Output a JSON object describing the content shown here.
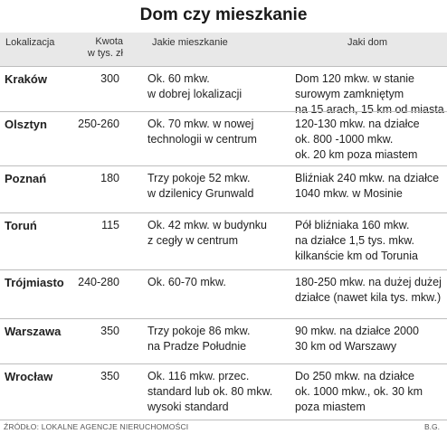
{
  "title": "Dom czy mieszkanie",
  "header": {
    "location": "Lokalizacja",
    "amount_l1": "Kwota",
    "amount_l2": "w tys. zł",
    "flat": "Jakie mieszkanie",
    "house": "Jaki dom"
  },
  "rows": [
    {
      "city": "Kraków",
      "price": "300",
      "flat": [
        "Ok. 60 mkw.",
        "w dobrej lokalizacji"
      ],
      "house": [
        "Dom 120 mkw. w stanie",
        "surowym zamkniętym",
        "na 15 arach, 15 km od miasta"
      ]
    },
    {
      "city": "Olsztyn",
      "price": "250-260",
      "flat": [
        "Ok. 70 mkw. w nowej",
        "technologii w centrum"
      ],
      "house": [
        "120-130 mkw. na działce",
        " ok. 800 -1000 mkw.",
        " ok. 20 km poza miastem"
      ]
    },
    {
      "city": "Poznań",
      "price": "180",
      "flat": [
        "Trzy pokoje 52 mkw.",
        "w dzilenicy Grunwald"
      ],
      "house": [
        "Bliźniak 240 mkw.  na działce",
        " 1040 mkw. w Mosinie"
      ]
    },
    {
      "city": "Toruń",
      "price": "115",
      "flat": [
        "Ok. 42 mkw. w budynku",
        "z cegły w centrum"
      ],
      "house": [
        "Pół bliźniaka 160 mkw.",
        "na działce 1,5 tys. mkw.",
        "kilkanście km od Torunia"
      ]
    },
    {
      "city": "Trójmiasto",
      "price": "240-280",
      "flat": [
        "Ok. 60-70 mkw."
      ],
      "house": [
        "180-250 mkw.  na dużej dużej",
        "działce (nawet kila tys. mkw.)"
      ]
    },
    {
      "city": "Warszawa",
      "price": "350",
      "flat": [
        "Trzy pokoje 86 mkw.",
        "na Pradze Południe"
      ],
      "house": [
        "90 mkw. na działce 2000",
        " 30 km od Warszawy"
      ]
    },
    {
      "city": "Wrocław",
      "price": "350",
      "flat": [
        "Ok. 116 mkw. przec.",
        "standard lub  ok. 80 mkw.",
        "wysoki standard"
      ],
      "house": [
        " Do 250 mkw. na działce",
        "ok. 1000 mkw., ok. 30 km",
        "poza miastem"
      ]
    }
  ],
  "footer": {
    "source": "ŹRÓDŁO: LOKALNE AGENCJE NIERUCHOMOŚCI",
    "author": "B.G."
  }
}
